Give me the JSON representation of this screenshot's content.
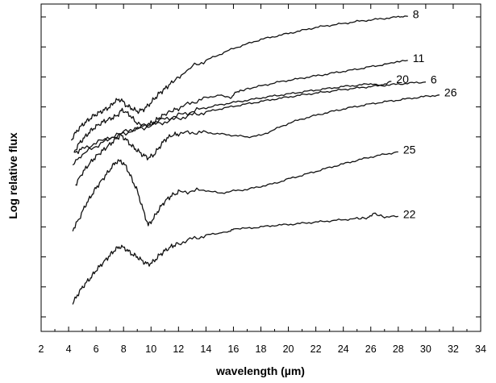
{
  "chart_data": {
    "type": "line",
    "xlabel": "wavelength (µm)",
    "ylabel": "Log relative flux",
    "xlim": [
      2,
      34
    ],
    "x_ticks": [
      2,
      4,
      6,
      8,
      10,
      12,
      14,
      16,
      18,
      20,
      22,
      24,
      26,
      28,
      30,
      32,
      34
    ],
    "ylim": [
      0,
      10
    ],
    "y_tick_count": 11,
    "grid": false,
    "legend": "none",
    "series_labels_inline": true,
    "series": [
      {
        "name": "8",
        "x": [
          4.2,
          4.6,
          5.0,
          5.4,
          5.8,
          6.2,
          6.6,
          7.0,
          7.4,
          7.8,
          8.2,
          8.6,
          9.0,
          9.4,
          9.8,
          10.2,
          10.6,
          11.0,
          11.6,
          12.2,
          13.0,
          14.0,
          15.0,
          16.0,
          17.0,
          18.0,
          19.0,
          20.0,
          21.0,
          22.0,
          23.0,
          24.0,
          25.0,
          26.0,
          27.0,
          28.0,
          28.7
        ],
        "y": [
          5.9,
          6.2,
          6.4,
          6.55,
          6.7,
          6.8,
          6.9,
          7.0,
          7.2,
          7.25,
          7.05,
          6.95,
          6.85,
          6.9,
          7.05,
          7.25,
          7.45,
          7.6,
          7.85,
          8.05,
          8.35,
          8.55,
          8.75,
          8.95,
          9.1,
          9.25,
          9.35,
          9.45,
          9.55,
          9.65,
          9.72,
          9.78,
          9.85,
          9.9,
          9.95,
          10.0,
          10.02
        ]
      },
      {
        "name": "11",
        "x": [
          4.4,
          4.8,
          5.2,
          5.6,
          6.0,
          6.5,
          7.0,
          7.5,
          7.9,
          8.4,
          9.0,
          9.6,
          10.2,
          10.8,
          11.4,
          12.0,
          13.0,
          14.0,
          15.0,
          15.8,
          16.2,
          16.6,
          17.5,
          18.5,
          19.5,
          20.5,
          21.5,
          22.5,
          23.5,
          24.5,
          25.5,
          26.5,
          27.5,
          28.7
        ],
        "y": [
          5.5,
          5.8,
          6.0,
          6.2,
          6.35,
          6.5,
          6.6,
          6.7,
          6.9,
          6.75,
          6.45,
          6.35,
          6.5,
          6.7,
          6.85,
          6.95,
          7.15,
          7.3,
          7.4,
          7.3,
          7.5,
          7.55,
          7.65,
          7.75,
          7.85,
          7.92,
          8.0,
          8.07,
          8.15,
          8.22,
          8.3,
          8.38,
          8.45,
          8.55
        ]
      },
      {
        "name": "20",
        "x": [
          4.3,
          5.0,
          6.0,
          7.0,
          8.0,
          9.0,
          10.0,
          11.0,
          12.0,
          13.0,
          14.0,
          15.0,
          16.0,
          17.0,
          18.0,
          19.0,
          20.0,
          21.0,
          22.0,
          23.0,
          24.0,
          25.0,
          26.0,
          26.8,
          27.5
        ],
        "y": [
          5.1,
          5.4,
          5.7,
          5.95,
          6.15,
          6.3,
          6.45,
          6.6,
          6.72,
          6.85,
          6.97,
          7.07,
          7.15,
          7.22,
          7.3,
          7.37,
          7.43,
          7.5,
          7.56,
          7.62,
          7.68,
          7.72,
          7.77,
          7.72,
          7.85
        ]
      },
      {
        "name": "6",
        "x": [
          4.4,
          5.0,
          6.0,
          7.0,
          8.0,
          9.0,
          10.0,
          11.0,
          12.0,
          13.0,
          14.0,
          15.0,
          16.0,
          17.0,
          18.0,
          19.0,
          20.0,
          21.0,
          22.0,
          23.0,
          24.0,
          25.0,
          26.0,
          27.0,
          28.0,
          29.0,
          30.0
        ],
        "y": [
          5.45,
          5.6,
          5.8,
          5.97,
          6.12,
          6.25,
          6.38,
          6.5,
          6.62,
          6.73,
          6.83,
          6.93,
          7.02,
          7.1,
          7.18,
          7.26,
          7.33,
          7.4,
          7.46,
          7.52,
          7.58,
          7.63,
          7.68,
          7.72,
          7.76,
          7.8,
          7.83
        ]
      },
      {
        "name": "26",
        "x": [
          4.5,
          5.0,
          5.5,
          6.0,
          6.5,
          7.0,
          7.5,
          7.8,
          8.2,
          8.6,
          9.0,
          9.4,
          9.8,
          10.2,
          10.6,
          11.0,
          11.5,
          12.0,
          13.0,
          14.0,
          15.0,
          16.0,
          17.0,
          18.0,
          19.0,
          20.0,
          21.0,
          22.0,
          23.0,
          24.0,
          25.0,
          26.0,
          27.0,
          28.0,
          29.0,
          30.0,
          31.0
        ],
        "y": [
          4.4,
          4.8,
          5.1,
          5.35,
          5.55,
          5.75,
          5.95,
          6.05,
          5.9,
          5.7,
          5.55,
          5.4,
          5.3,
          5.4,
          5.65,
          5.9,
          6.05,
          6.1,
          6.15,
          6.15,
          6.1,
          6.05,
          6.0,
          6.05,
          6.25,
          6.45,
          6.6,
          6.72,
          6.83,
          6.93,
          7.02,
          7.1,
          7.17,
          7.23,
          7.29,
          7.35,
          7.4
        ]
      },
      {
        "name": "25",
        "x": [
          4.3,
          4.8,
          5.2,
          5.6,
          6.0,
          6.5,
          7.0,
          7.4,
          7.8,
          8.2,
          8.6,
          9.0,
          9.4,
          9.8,
          10.2,
          10.6,
          11.0,
          11.5,
          12.0,
          13.0,
          14.0,
          15.0,
          16.0,
          17.0,
          18.0,
          19.0,
          20.0,
          21.0,
          22.0,
          23.0,
          24.0,
          25.0,
          26.0,
          27.0,
          28.0
        ],
        "y": [
          2.9,
          3.3,
          3.7,
          4.0,
          4.3,
          4.6,
          4.9,
          5.15,
          5.2,
          5.0,
          4.6,
          4.2,
          3.6,
          3.05,
          3.3,
          3.6,
          3.85,
          4.05,
          4.15,
          4.2,
          4.22,
          4.12,
          4.2,
          4.25,
          4.35,
          4.45,
          4.6,
          4.72,
          4.85,
          4.98,
          5.1,
          5.22,
          5.33,
          5.42,
          5.5
        ]
      },
      {
        "name": "22",
        "x": [
          4.3,
          4.8,
          5.2,
          5.6,
          6.0,
          6.5,
          7.0,
          7.4,
          7.8,
          8.2,
          8.6,
          9.0,
          9.4,
          9.8,
          10.2,
          10.6,
          11.0,
          11.5,
          12.0,
          13.0,
          14.0,
          15.0,
          15.8,
          16.0,
          17.0,
          18.0,
          19.0,
          20.0,
          21.0,
          22.0,
          23.0,
          24.0,
          25.0,
          25.8,
          26.2,
          27.0,
          28.0
        ],
        "y": [
          0.45,
          0.85,
          1.1,
          1.3,
          1.55,
          1.8,
          2.05,
          2.25,
          2.35,
          2.25,
          2.1,
          2.0,
          1.85,
          1.75,
          1.85,
          2.05,
          2.2,
          2.35,
          2.45,
          2.6,
          2.72,
          2.8,
          2.85,
          2.95,
          2.95,
          3.0,
          3.05,
          3.08,
          3.12,
          3.16,
          3.2,
          3.24,
          3.28,
          3.3,
          3.45,
          3.33,
          3.35
        ]
      }
    ]
  }
}
